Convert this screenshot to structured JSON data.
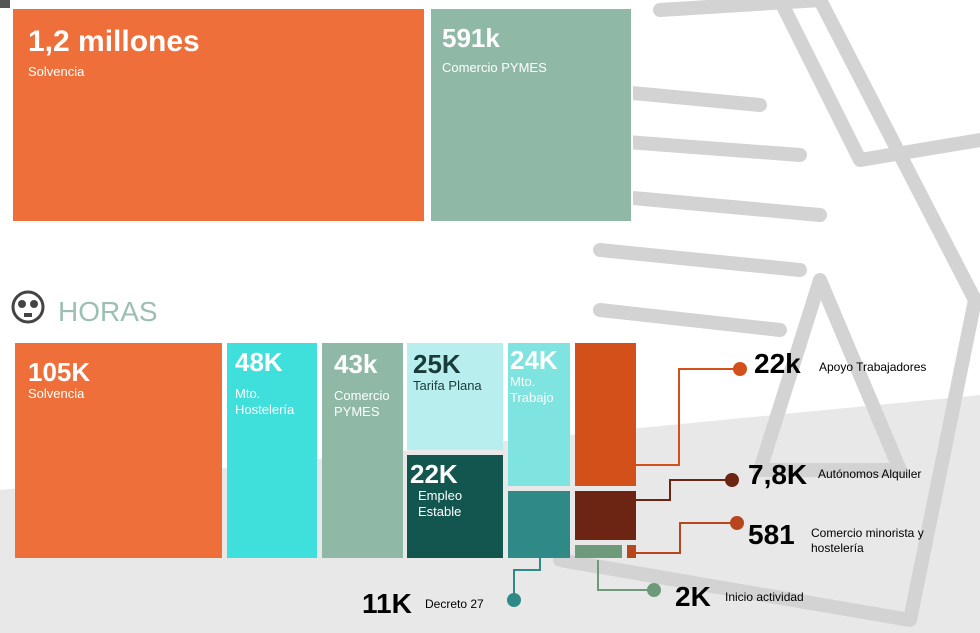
{
  "top": {
    "tiles": [
      {
        "value": "1,2 millones",
        "label": "Solvencia"
      },
      {
        "value": "591k",
        "label": "Comercio PYMES"
      }
    ]
  },
  "hours": {
    "title": "HORAS",
    "tiles": [
      {
        "value": "105K",
        "label": "Solvencia"
      },
      {
        "value": "48K",
        "label": "Mto. Hostelería"
      },
      {
        "value": "43k",
        "label": "Comercio PYMES"
      },
      {
        "value": "25K",
        "label": "Tarifa Plana"
      },
      {
        "value": "22K",
        "label": "Empleo Estable"
      },
      {
        "value": "24K",
        "label": "Mto. Trabajo"
      }
    ],
    "callouts": [
      {
        "value": "22k",
        "label": "Apoyo Trabajadores"
      },
      {
        "value": "7,8K",
        "label": "Autónomos Alquiler"
      },
      {
        "value": "581",
        "label": "Comercio minorista y hostelería"
      },
      {
        "value": "2K",
        "label": "Inicio actividad"
      },
      {
        "value": "11K",
        "label": "Decreto 27"
      }
    ]
  }
}
